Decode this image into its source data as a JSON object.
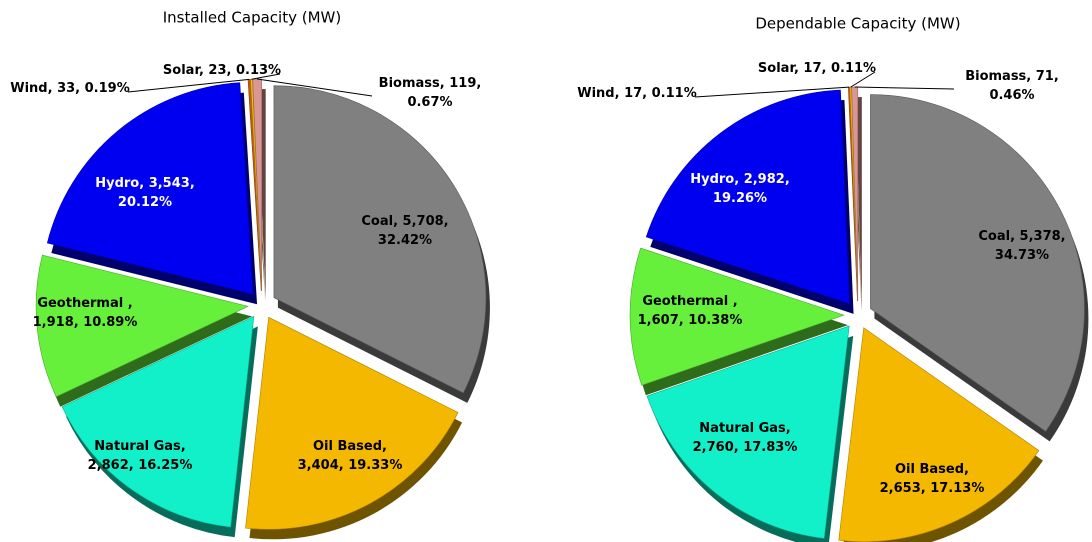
{
  "chart_data": [
    {
      "type": "pie",
      "title": "Installed Capacity (MW)",
      "values": [
        5708,
        3404,
        2862,
        1918,
        3543,
        33,
        23,
        119
      ],
      "value_labels": [
        [
          "Coal, 5,708,",
          "32.42%"
        ],
        [
          "Oil Based,",
          "3,404, 19.33%"
        ],
        [
          "Natural Gas,",
          "2,862, 16.25%"
        ],
        [
          "Geothermal ,",
          "1,918, 10.89%"
        ],
        [
          "Hydro, 3,543,",
          "20.12%"
        ],
        [
          "Wind, 33, 0.19%"
        ],
        [
          "Solar, 23, 0.13%"
        ],
        [
          "Biomass, 119,",
          "0.67%"
        ]
      ],
      "colors": [
        "#808080",
        "#f5b800",
        "#11f0c8",
        "#66f03c",
        "#0000f0",
        "#c55a11",
        "#ffc000",
        "#d99694"
      ]
    },
    {
      "type": "pie",
      "title": "Dependable Capacity (MW)",
      "values": [
        5378,
        2653,
        2760,
        1607,
        2982,
        17,
        17,
        71
      ],
      "value_labels": [
        [
          "Coal, 5,378,",
          "34.73%"
        ],
        [
          "Oil Based,",
          "2,653, 17.13%"
        ],
        [
          "Natural Gas,",
          "2,760, 17.83%"
        ],
        [
          "Geothermal ,",
          "1,607, 10.38%"
        ],
        [
          "Hydro, 2,982,",
          "19.26%"
        ],
        [
          "Wind, 17, 0.11%"
        ],
        [
          "Solar, 17, 0.11%"
        ],
        [
          "Biomass, 71,",
          "0.46%"
        ]
      ],
      "colors": [
        "#808080",
        "#f5b800",
        "#11f0c8",
        "#66f03c",
        "#0000f0",
        "#c55a11",
        "#ffc000",
        "#d99694"
      ]
    }
  ]
}
